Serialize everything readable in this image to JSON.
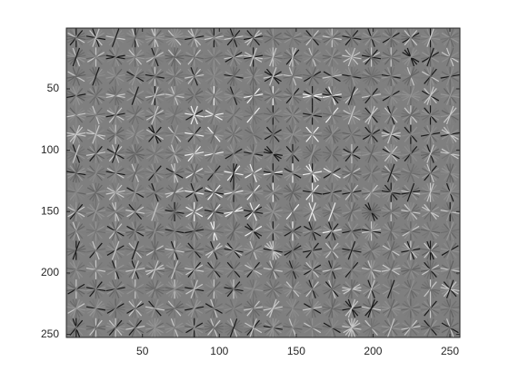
{
  "chart_data": {
    "type": "image",
    "xlim": [
      0.5,
      256.5
    ],
    "ylim": [
      0.5,
      252.5
    ],
    "xticks": [
      50,
      100,
      150,
      200,
      250
    ],
    "yticks": [
      50,
      100,
      150,
      200,
      250
    ],
    "y_reversed": true
  }
}
